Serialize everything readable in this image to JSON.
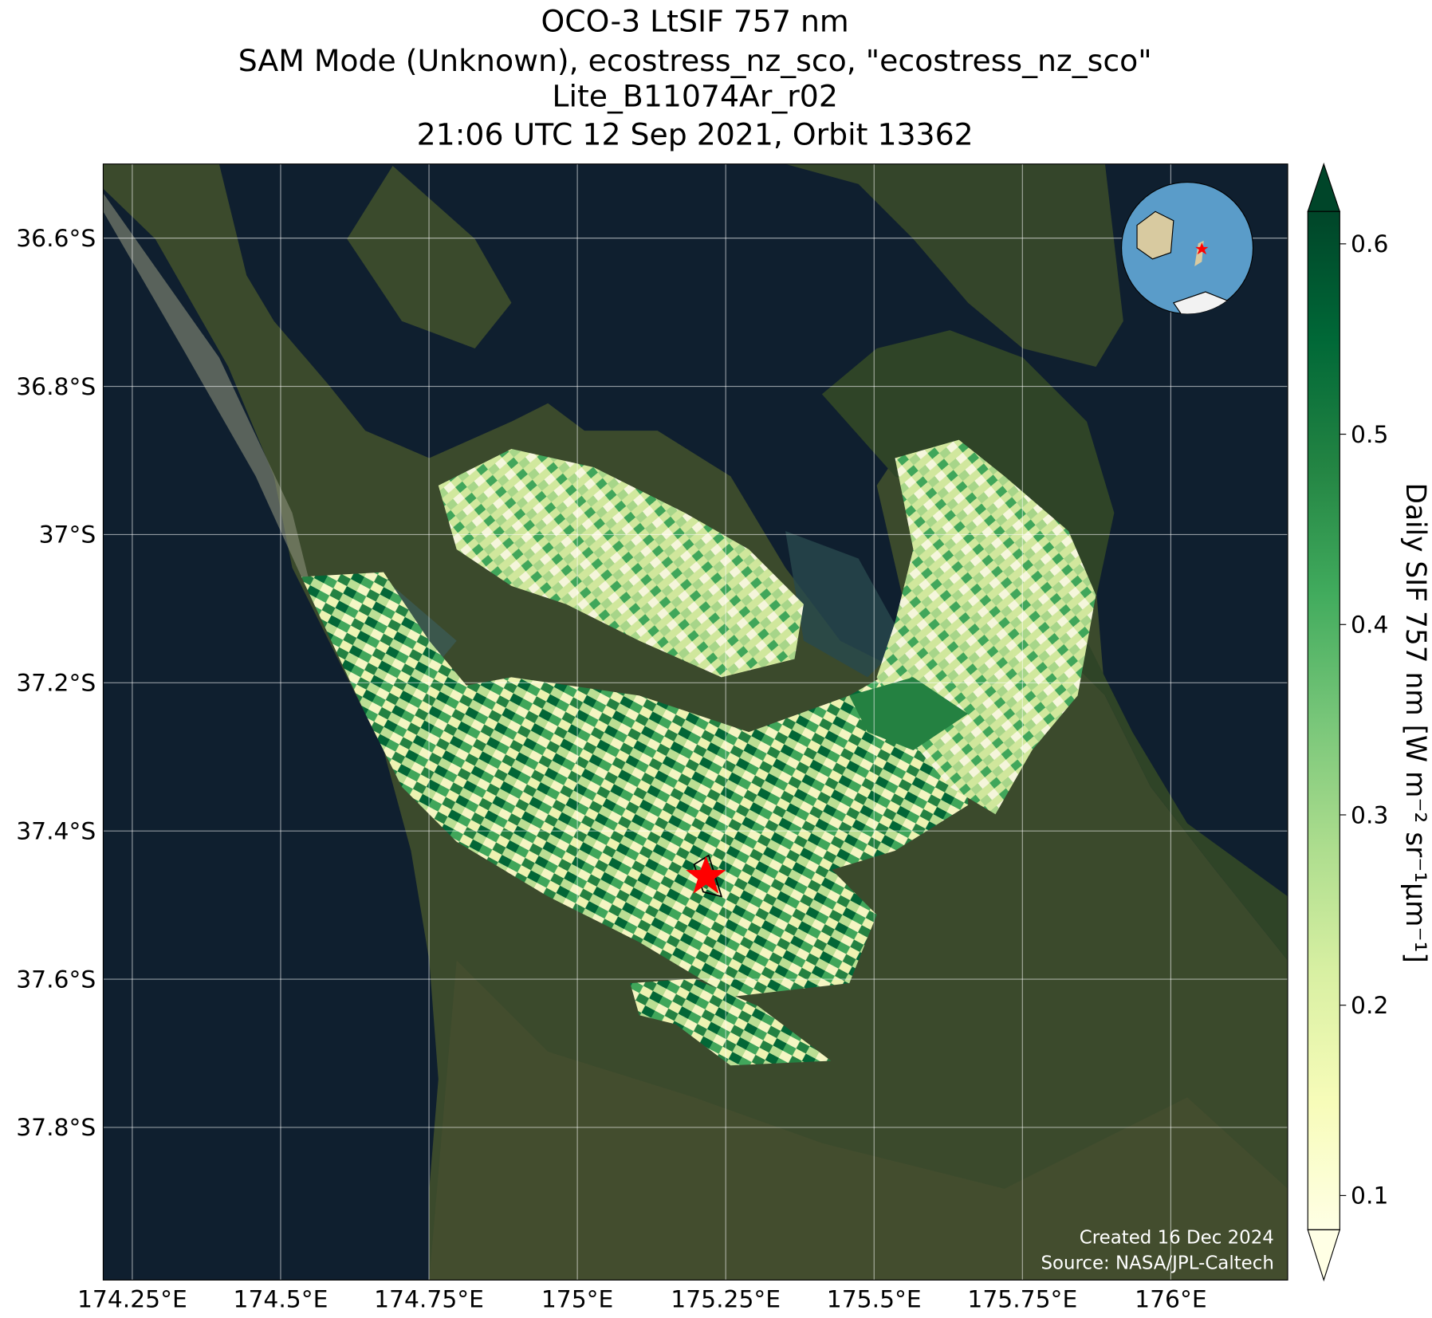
{
  "chart_data": {
    "type": "map",
    "title": [
      "OCO-3 LtSIF 757 nm",
      "SAM Mode (Unknown), ecostress_nz_sco, \"ecostress_nz_sco\"",
      "Lite_B11074Ar_r02",
      "21:06 UTC 12 Sep 2021, Orbit 13362"
    ],
    "xlim": [
      174.201,
      176.197
    ],
    "ylim": [
      -38.006,
      -36.5
    ],
    "xticks": [
      {
        "value": 174.25,
        "label": "174.25°E"
      },
      {
        "value": 174.5,
        "label": "174.5°E"
      },
      {
        "value": 174.75,
        "label": "174.75°E"
      },
      {
        "value": 175,
        "label": "175°E"
      },
      {
        "value": 175.25,
        "label": "175.25°E"
      },
      {
        "value": 175.5,
        "label": "175.5°E"
      },
      {
        "value": 175.75,
        "label": "175.75°E"
      },
      {
        "value": 176,
        "label": "176°E"
      }
    ],
    "yticks": [
      {
        "value": -36.6,
        "label": "36.6°S"
      },
      {
        "value": -36.8,
        "label": "36.8°S"
      },
      {
        "value": -37,
        "label": "37°S"
      },
      {
        "value": -37.2,
        "label": "37.2°S"
      },
      {
        "value": -37.4,
        "label": "37.4°S"
      },
      {
        "value": -37.6,
        "label": "37.6°S"
      },
      {
        "value": -37.8,
        "label": "37.8°S"
      }
    ],
    "grid": true,
    "colorbar": {
      "label": "Daily SIF 757 nm [W m⁻² sr⁻¹μm⁻¹]",
      "colormap": "YlGn",
      "clim": [
        0.082,
        0.617
      ],
      "ticks": [
        0.1,
        0.2,
        0.3,
        0.4,
        0.5,
        0.6
      ]
    },
    "credits": [
      "Created 16 Dec 2024",
      "Source: NASA/JPL-Caltech"
    ]
  }
}
